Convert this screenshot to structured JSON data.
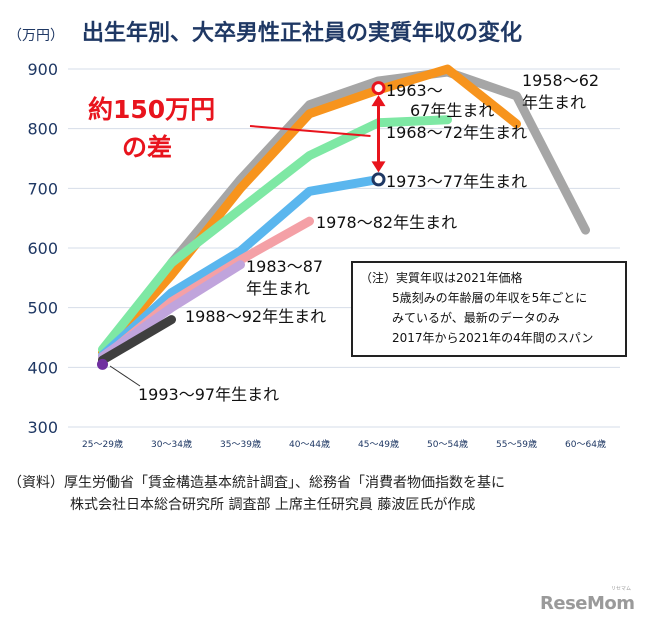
{
  "chart_data": {
    "type": "line",
    "title": "出生年別、大卒男性正社員の実質年収の変化",
    "unit_label": "（万円）",
    "ylim": [
      300,
      900
    ],
    "yticks": [
      300,
      400,
      500,
      600,
      700,
      800,
      900
    ],
    "categories": [
      "25～29歳",
      "30～34歳",
      "35～39歳",
      "40～44歳",
      "45～49歳",
      "50～54歳",
      "55～59歳",
      "60～64歳"
    ],
    "grid": true,
    "series": [
      {
        "name": "1958～62年生まれ",
        "label_lines": [
          "1958～62",
          "年生まれ"
        ],
        "color": "#a6a6a6",
        "values": [
          null,
          575,
          715,
          840,
          880,
          895,
          855,
          630
        ]
      },
      {
        "name": "1963～67年生まれ",
        "label_lines": [
          "1963～",
          "67年生まれ"
        ],
        "color": "#f7941d",
        "values": [
          425,
          555,
          700,
          825,
          865,
          900,
          808,
          null
        ]
      },
      {
        "name": "1968～72年生まれ",
        "label_lines": [
          "1968～72年生まれ"
        ],
        "color": "#7ee8a4",
        "values": [
          430,
          575,
          665,
          755,
          810,
          815,
          null,
          null
        ]
      },
      {
        "name": "1973～77年生まれ",
        "label_lines": [
          "1973～77年生まれ"
        ],
        "color": "#5ab6ee",
        "values": [
          420,
          525,
          595,
          695,
          715,
          null,
          null,
          null
        ]
      },
      {
        "name": "1978～82年生まれ",
        "label_lines": [
          "1978～82年生まれ"
        ],
        "color": "#f4a0a6",
        "values": [
          415,
          510,
          580,
          645,
          null,
          null,
          null,
          null
        ]
      },
      {
        "name": "1983～87年生まれ",
        "label_lines": [
          "1983～87",
          "年生まれ"
        ],
        "color": "#c0a4dc",
        "values": [
          418,
          500,
          572,
          null,
          null,
          null,
          null,
          null
        ]
      },
      {
        "name": "1988～92年生まれ",
        "label_lines": [
          "1988～92年生まれ"
        ],
        "color": "#3f3f3f",
        "values": [
          412,
          480,
          null,
          null,
          null,
          null,
          null,
          null
        ]
      },
      {
        "name": "1993～97年生まれ",
        "label_lines": [
          "1993～97年生まれ"
        ],
        "color": "#7030a0",
        "values": [
          405,
          null,
          null,
          null,
          null,
          null,
          null,
          null
        ]
      }
    ],
    "annotation": {
      "text_lines": [
        "約150万円",
        "の差"
      ],
      "color": "#e8141d",
      "category": "45～49歳",
      "from_value": 715,
      "to_value": 868
    },
    "note_lines": [
      "（注）実質年収は2021年価格",
      "5歳刻みの年齢層の年収を5年ごとに",
      "みているが、最新のデータのみ",
      "2017年から2021年の4年間のスパン"
    ]
  },
  "source_lines": [
    "（資料）厚生労働省「賃金構造基本統計調査」、総務省「消費者物価指数を基に",
    "株式会社日本総合研究所 調査部 上席主任研究員 藤波匠氏が作成"
  ],
  "logo": {
    "text": "ReseMom",
    "subtext": "リセマム"
  }
}
